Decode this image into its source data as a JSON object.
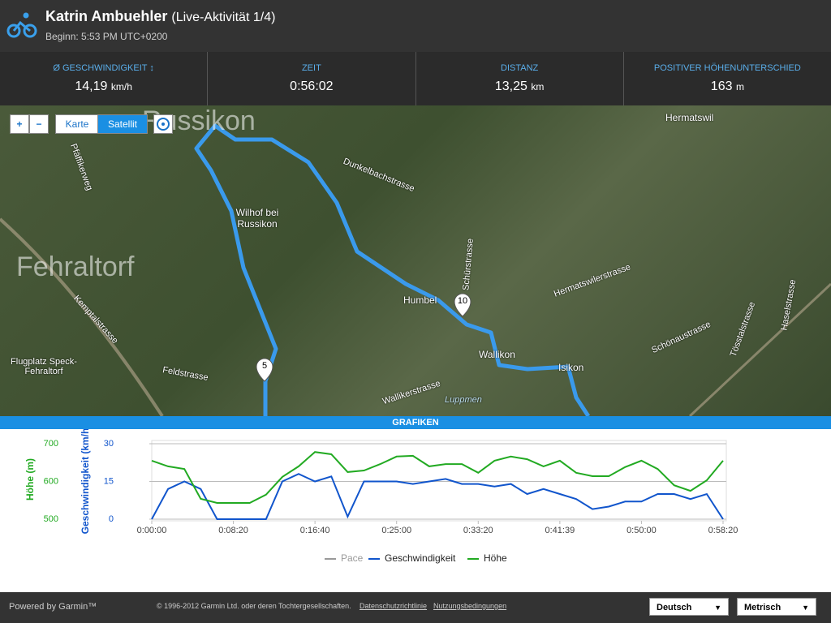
{
  "header": {
    "name": "Katrin Ambuehler",
    "activity": "(Live-Aktivität 1/4)",
    "subtitle": "Beginn: 5:53 PM UTC+0200"
  },
  "stats": [
    {
      "label": "Ø GESCHWINDIGKEIT",
      "value": "14,19",
      "unit": "km/h"
    },
    {
      "label": "ZEIT",
      "value": "0:56:02",
      "unit": ""
    },
    {
      "label": "DISTANZ",
      "value": "13,25",
      "unit": "km"
    },
    {
      "label": "POSITIVER HÖHENUNTERSCHIED",
      "value": "163",
      "unit": "m"
    }
  ],
  "map": {
    "controls": {
      "zoom_in": "+",
      "zoom_out": "−",
      "map": "Karte",
      "satellite": "Satellit"
    },
    "labels": [
      "Russikon",
      "Fehraltorf",
      "Wilhof bei Russikon",
      "Hermatswil",
      "Humbel",
      "Wallikon",
      "Isikon",
      "Flugplatz Speck-Fehraltorf",
      "Dunkelbachstrasse",
      "Schürstrasse",
      "Hermatswilerstrasse",
      "Kemptalstrasse",
      "Feldstrasse",
      "Wallikerstrasse",
      "Luppmen",
      "Schönaustrasse",
      "Tösstalstrasse",
      "Haselstrasse",
      "Pfäffikerweg"
    ],
    "markers": [
      "5",
      "10"
    ]
  },
  "section": "GRAFIKEN",
  "chart_data": {
    "type": "line",
    "ylabel": "Höhe (m)",
    "y2label": "Geschwindigkeit (km/h)",
    "x": [
      0,
      100,
      200,
      300,
      400,
      500,
      600,
      700,
      800,
      900,
      1000,
      1100,
      1200,
      1300,
      1400,
      1500,
      1600,
      1700,
      1800,
      1900,
      2000,
      2100,
      2200,
      2300,
      2400,
      2500,
      2600,
      2700,
      2800,
      2900,
      3000,
      3100,
      3200,
      3300,
      3400,
      3500
    ],
    "xlim": [
      0,
      3500
    ],
    "xticks": [
      {
        "value": 0,
        "label": "0:00:00"
      },
      {
        "value": 500,
        "label": "0:08:20"
      },
      {
        "value": 1000,
        "label": "0:16:40"
      },
      {
        "value": 1500,
        "label": "0:25:00"
      },
      {
        "value": 2000,
        "label": "0:33:20"
      },
      {
        "value": 2500,
        "label": "0:41:39"
      },
      {
        "value": 3000,
        "label": "0:50:00"
      },
      {
        "value": 3500,
        "label": "0:58:20"
      }
    ],
    "ylim": [
      500,
      700
    ],
    "yticks": [
      500,
      600,
      700
    ],
    "y2lim": [
      0,
      30
    ],
    "y2ticks": [
      0,
      15,
      30
    ],
    "grid": true,
    "series": [
      {
        "name": "Pace",
        "color": "#999999",
        "values": [
          null,
          null,
          null,
          null,
          null,
          null,
          null,
          null,
          null,
          null,
          null,
          null,
          null,
          null,
          null,
          null,
          null,
          null,
          null,
          null,
          null,
          null,
          null,
          null,
          null,
          null,
          null,
          null,
          null,
          null,
          null,
          null,
          null,
          null,
          null,
          null
        ]
      },
      {
        "name": "Geschwindigkeit",
        "color": "#1155cc",
        "axis": "y2",
        "values": [
          0,
          12,
          15,
          12,
          0,
          0,
          0,
          0,
          15,
          18,
          15,
          17,
          1,
          15,
          15,
          15,
          14,
          15,
          16,
          14,
          14,
          13,
          14,
          10,
          12,
          10,
          8,
          4,
          5,
          7,
          7,
          10,
          10,
          8,
          10,
          0
        ]
      },
      {
        "name": "Höhe",
        "color": "#22aa22",
        "values": [
          655,
          640,
          633,
          554,
          543,
          543,
          543,
          565,
          612,
          640,
          678,
          672,
          625,
          629,
          646,
          666,
          668,
          640,
          646,
          646,
          623,
          655,
          666,
          659,
          640,
          655,
          623,
          614,
          614,
          638,
          655,
          633,
          590,
          575,
          603,
          655
        ]
      }
    ]
  },
  "footer": {
    "powered": "Powered by Garmin™",
    "copyright": "© 1996-2012 Garmin Ltd. oder deren Tochtergesellschaften.",
    "privacy": "Datenschutzrichtlinie",
    "terms": "Nutzungsbedingungen",
    "language": "Deutsch",
    "units": "Metrisch"
  }
}
